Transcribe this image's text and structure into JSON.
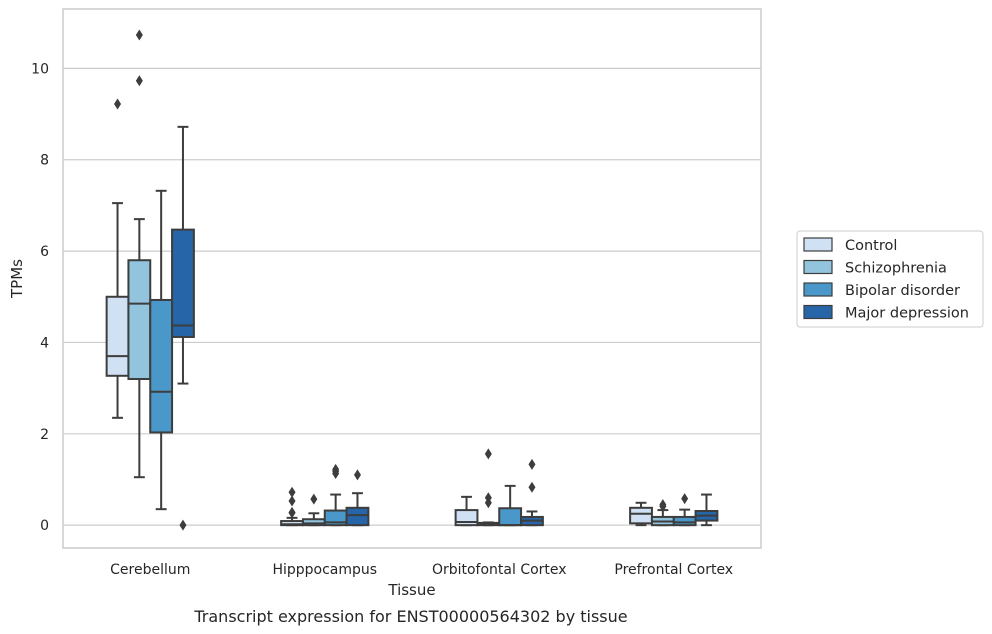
{
  "chart_data": {
    "type": "box",
    "xlabel": "Tissue",
    "ylabel": "TPMs",
    "caption": "Transcript expression for ENST00000564302 by tissue",
    "categories": [
      "Cerebellum",
      "Hipppocampus",
      "Orbitofontal Cortex",
      "Prefrontal Cortex"
    ],
    "ylim": [
      -0.5,
      11.3
    ],
    "yticks": [
      0,
      2,
      4,
      6,
      8,
      10
    ],
    "grid": "horizontal",
    "legend_position": "right",
    "series": [
      {
        "name": "Control",
        "color": "#cfe1f2",
        "boxes": [
          {
            "whislo": 2.35,
            "q1": 3.27,
            "med": 3.7,
            "q3": 5.0,
            "whishi": 7.05,
            "fliers": [
              9.22
            ]
          },
          {
            "whislo": 0.0,
            "q1": 0.0,
            "med": 0.02,
            "q3": 0.09,
            "whishi": 0.16,
            "fliers": [
              0.27,
              0.28,
              0.53,
              0.72
            ]
          },
          {
            "whislo": 0.0,
            "q1": 0.0,
            "med": 0.07,
            "q3": 0.33,
            "whishi": 0.62,
            "fliers": []
          },
          {
            "whislo": 0.0,
            "q1": 0.04,
            "med": 0.25,
            "q3": 0.38,
            "whishi": 0.49,
            "fliers": []
          }
        ]
      },
      {
        "name": "Schizophrenia",
        "color": "#93c4de",
        "boxes": [
          {
            "whislo": 1.05,
            "q1": 3.2,
            "med": 4.85,
            "q3": 5.8,
            "whishi": 6.7,
            "fliers": [
              9.73,
              10.73
            ]
          },
          {
            "whislo": 0.0,
            "q1": 0.0,
            "med": 0.04,
            "q3": 0.13,
            "whishi": 0.26,
            "fliers": [
              0.57
            ]
          },
          {
            "whislo": 0.0,
            "q1": 0.0,
            "med": 0.02,
            "q3": 0.05,
            "whishi": 0.06,
            "fliers": [
              0.49,
              0.6,
              1.56
            ]
          },
          {
            "whislo": 0.0,
            "q1": 0.0,
            "med": 0.08,
            "q3": 0.18,
            "whishi": 0.33,
            "fliers": [
              0.41,
              0.45
            ]
          }
        ]
      },
      {
        "name": "Bipolar disorder",
        "color": "#4a98c9",
        "boxes": [
          {
            "whislo": 0.35,
            "q1": 2.03,
            "med": 2.92,
            "q3": 4.93,
            "whishi": 7.32,
            "fliers": []
          },
          {
            "whislo": 0.0,
            "q1": 0.0,
            "med": 0.06,
            "q3": 0.32,
            "whishi": 0.67,
            "fliers": [
              1.13,
              1.18,
              1.22
            ]
          },
          {
            "whislo": 0.0,
            "q1": 0.0,
            "med": 0.0,
            "q3": 0.37,
            "whishi": 0.86,
            "fliers": []
          },
          {
            "whislo": 0.0,
            "q1": 0.0,
            "med": 0.06,
            "q3": 0.18,
            "whishi": 0.34,
            "fliers": [
              0.58
            ]
          }
        ]
      },
      {
        "name": "Major depression",
        "color": "#2565a8",
        "boxes": [
          {
            "whislo": 3.1,
            "q1": 4.12,
            "med": 4.37,
            "q3": 6.47,
            "whishi": 8.72,
            "fliers": [
              0.0
            ]
          },
          {
            "whislo": 0.0,
            "q1": 0.0,
            "med": 0.22,
            "q3": 0.38,
            "whishi": 0.7,
            "fliers": [
              1.1
            ]
          },
          {
            "whislo": 0.0,
            "q1": 0.0,
            "med": 0.1,
            "q3": 0.18,
            "whishi": 0.3,
            "fliers": [
              0.83,
              1.33
            ]
          },
          {
            "whislo": 0.0,
            "q1": 0.1,
            "med": 0.21,
            "q3": 0.31,
            "whishi": 0.67,
            "fliers": []
          }
        ]
      }
    ]
  }
}
